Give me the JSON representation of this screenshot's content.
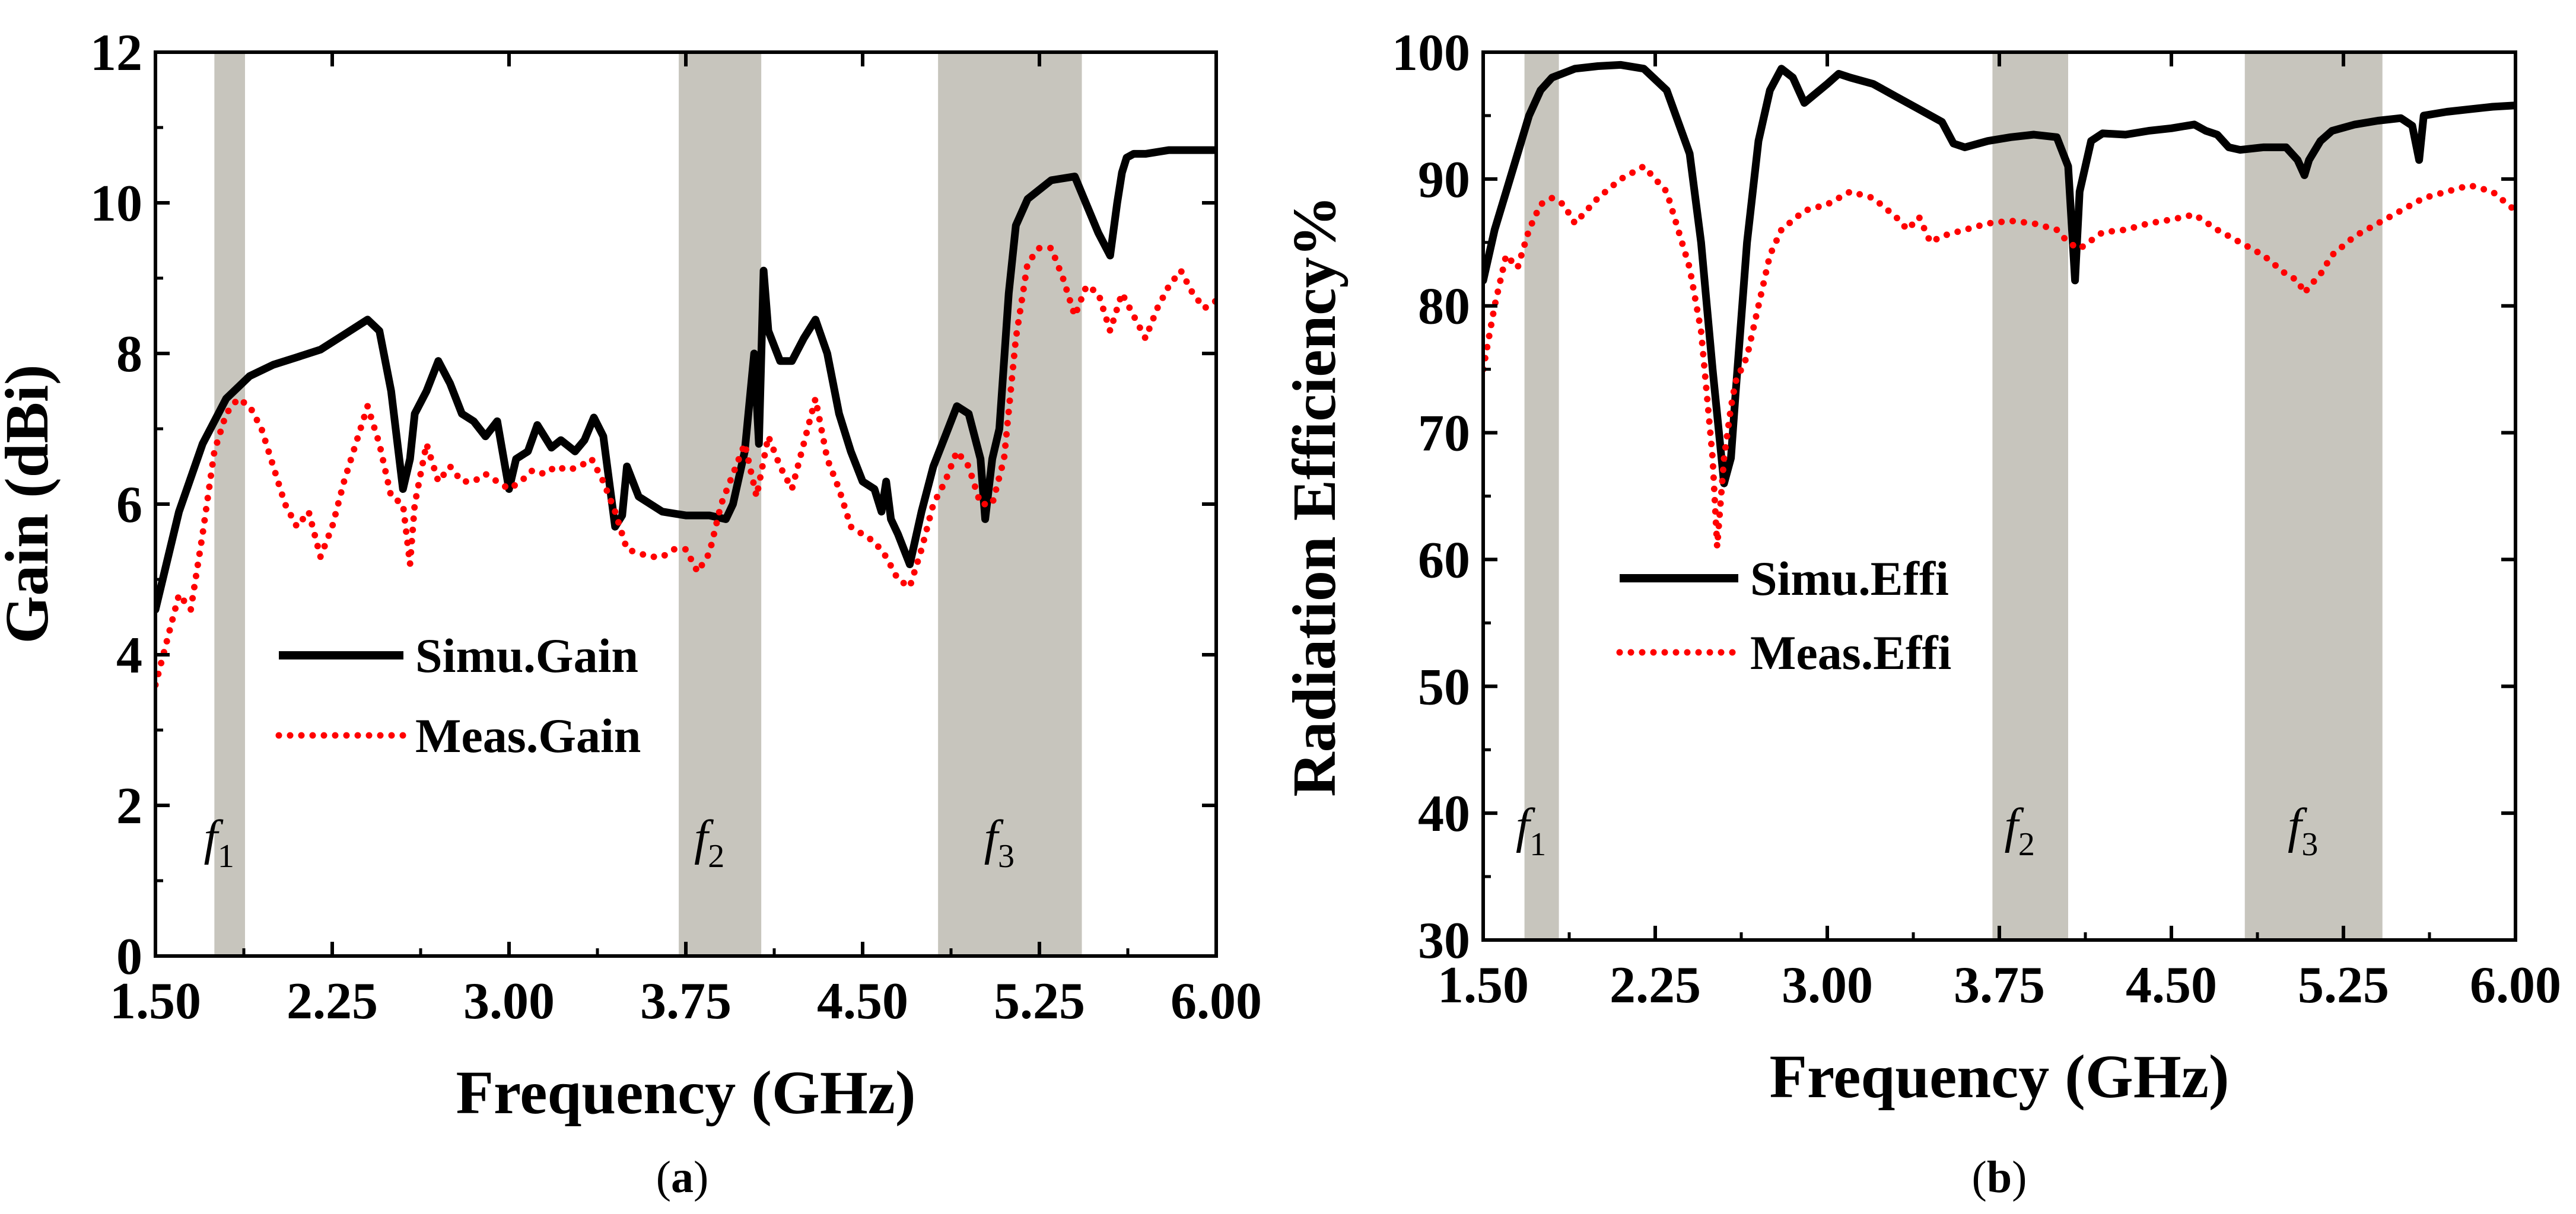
{
  "chart_data": [
    {
      "type": "line",
      "panel": "(a)",
      "caption_letter": "a",
      "xlabel": "Frequency (GHz)",
      "ylabel": "Gain (dBi)",
      "xlim": [
        1.5,
        6.0
      ],
      "ylim": [
        0,
        12
      ],
      "xticks": [
        "1.50",
        "2.25",
        "3.00",
        "3.75",
        "4.50",
        "5.25",
        "6.00"
      ],
      "yticks": [
        "0",
        "2",
        "4",
        "6",
        "8",
        "10",
        "12"
      ],
      "grid": false,
      "legend_position": "lower-left",
      "bands": [
        {
          "label": "f",
          "sub": "1",
          "range": [
            1.75,
            1.88
          ]
        },
        {
          "label": "f",
          "sub": "2",
          "range": [
            3.72,
            4.07
          ]
        },
        {
          "label": "f",
          "sub": "3",
          "range": [
            4.82,
            5.43
          ]
        }
      ],
      "series": [
        {
          "name": "Simu.Gain",
          "color": "#000000",
          "style": "solid",
          "x": [
            1.5,
            1.6,
            1.7,
            1.8,
            1.9,
            2.0,
            2.1,
            2.2,
            2.3,
            2.4,
            2.45,
            2.5,
            2.55,
            2.58,
            2.6,
            2.65,
            2.7,
            2.75,
            2.8,
            2.85,
            2.9,
            2.95,
            3.0,
            3.03,
            3.08,
            3.12,
            3.18,
            3.22,
            3.28,
            3.32,
            3.36,
            3.4,
            3.45,
            3.48,
            3.5,
            3.55,
            3.65,
            3.75,
            3.85,
            3.92,
            3.95,
            4.0,
            4.04,
            4.06,
            4.08,
            4.1,
            4.15,
            4.2,
            4.25,
            4.3,
            4.35,
            4.4,
            4.45,
            4.5,
            4.55,
            4.58,
            4.6,
            4.62,
            4.65,
            4.7,
            4.75,
            4.8,
            4.85,
            4.9,
            4.95,
            5.0,
            5.02,
            5.05,
            5.08,
            5.12,
            5.15,
            5.2,
            5.3,
            5.4,
            5.5,
            5.55,
            5.58,
            5.6,
            5.62,
            5.65,
            5.7,
            5.8,
            5.9,
            6.0
          ],
          "y": [
            4.6,
            5.9,
            6.8,
            7.4,
            7.7,
            7.85,
            7.95,
            8.05,
            8.25,
            8.45,
            8.3,
            7.5,
            6.2,
            6.6,
            7.2,
            7.5,
            7.9,
            7.6,
            7.2,
            7.1,
            6.9,
            7.1,
            6.2,
            6.6,
            6.7,
            7.05,
            6.75,
            6.85,
            6.7,
            6.85,
            7.15,
            6.9,
            5.7,
            5.85,
            6.5,
            6.1,
            5.9,
            5.85,
            5.85,
            5.8,
            6.0,
            6.7,
            8.0,
            6.8,
            9.1,
            8.3,
            7.9,
            7.9,
            8.2,
            8.45,
            8.0,
            7.2,
            6.7,
            6.3,
            6.2,
            5.9,
            6.3,
            5.8,
            5.6,
            5.2,
            5.9,
            6.5,
            6.9,
            7.3,
            7.2,
            6.6,
            5.8,
            6.6,
            7.0,
            8.8,
            9.7,
            10.05,
            10.3,
            10.35,
            9.6,
            9.3,
            10.0,
            10.4,
            10.6,
            10.65,
            10.65,
            10.7,
            10.7,
            10.7
          ]
        },
        {
          "name": "Meas.Gain",
          "color": "#ff0000",
          "style": "dotted",
          "x": [
            1.5,
            1.55,
            1.6,
            1.65,
            1.7,
            1.75,
            1.8,
            1.85,
            1.9,
            1.95,
            2.0,
            2.05,
            2.1,
            2.15,
            2.2,
            2.25,
            2.3,
            2.35,
            2.4,
            2.45,
            2.5,
            2.55,
            2.58,
            2.6,
            2.65,
            2.7,
            2.75,
            2.8,
            2.85,
            2.9,
            2.95,
            3.0,
            3.05,
            3.1,
            3.15,
            3.2,
            3.25,
            3.3,
            3.35,
            3.4,
            3.45,
            3.5,
            3.55,
            3.6,
            3.65,
            3.7,
            3.75,
            3.8,
            3.85,
            3.9,
            3.95,
            4.0,
            4.05,
            4.1,
            4.15,
            4.2,
            4.25,
            4.3,
            4.35,
            4.4,
            4.45,
            4.5,
            4.55,
            4.6,
            4.65,
            4.7,
            4.75,
            4.8,
            4.85,
            4.9,
            4.95,
            5.0,
            5.05,
            5.1,
            5.15,
            5.2,
            5.25,
            5.3,
            5.35,
            5.4,
            5.45,
            5.5,
            5.55,
            5.6,
            5.65,
            5.7,
            5.75,
            5.8,
            5.85,
            5.9,
            5.95,
            6.0
          ],
          "y": [
            3.6,
            4.2,
            4.8,
            4.6,
            5.6,
            6.7,
            7.2,
            7.4,
            7.3,
            7.0,
            6.5,
            6.0,
            5.7,
            5.9,
            5.3,
            5.7,
            6.3,
            6.8,
            7.3,
            6.8,
            6.1,
            6.0,
            5.2,
            6.0,
            6.8,
            6.3,
            6.5,
            6.3,
            6.3,
            6.4,
            6.3,
            6.2,
            6.3,
            6.45,
            6.4,
            6.5,
            6.45,
            6.5,
            6.6,
            6.3,
            5.9,
            5.4,
            5.35,
            5.3,
            5.3,
            5.4,
            5.4,
            5.1,
            5.35,
            6.0,
            6.4,
            6.8,
            6.1,
            6.9,
            6.5,
            6.2,
            6.8,
            7.4,
            6.6,
            6.2,
            5.7,
            5.6,
            5.5,
            5.3,
            5.0,
            4.9,
            5.4,
            6.0,
            6.3,
            6.7,
            6.5,
            6.0,
            6.0,
            6.6,
            8.2,
            9.2,
            9.4,
            9.4,
            9.0,
            8.5,
            8.9,
            8.8,
            8.3,
            8.8,
            8.5,
            8.2,
            8.6,
            8.9,
            9.1,
            8.8,
            8.6,
            8.7
          ]
        }
      ]
    },
    {
      "type": "line",
      "panel": "(b)",
      "caption_letter": "b",
      "xlabel": "Frequency (GHz)",
      "ylabel": "Radiation Efficiency%",
      "xlim": [
        1.5,
        6.0
      ],
      "ylim": [
        30,
        100
      ],
      "xticks": [
        "1.50",
        "2.25",
        "3.00",
        "3.75",
        "4.50",
        "5.25",
        "6.00"
      ],
      "yticks": [
        "30",
        "40",
        "50",
        "60",
        "70",
        "80",
        "90",
        "100"
      ],
      "grid": false,
      "legend_position": "center-left",
      "bands": [
        {
          "label": "f",
          "sub": "1",
          "range": [
            1.68,
            1.83
          ]
        },
        {
          "label": "f",
          "sub": "2",
          "range": [
            3.72,
            4.05
          ]
        },
        {
          "label": "f",
          "sub": "3",
          "range": [
            4.82,
            5.42
          ]
        }
      ],
      "series": [
        {
          "name": "Simu.Effi",
          "color": "#000000",
          "style": "solid",
          "x": [
            1.5,
            1.55,
            1.6,
            1.65,
            1.7,
            1.75,
            1.8,
            1.9,
            2.0,
            2.1,
            2.2,
            2.3,
            2.4,
            2.45,
            2.5,
            2.55,
            2.58,
            2.6,
            2.65,
            2.7,
            2.75,
            2.8,
            2.85,
            2.9,
            3.0,
            3.05,
            3.1,
            3.2,
            3.3,
            3.4,
            3.5,
            3.55,
            3.6,
            3.7,
            3.8,
            3.9,
            4.0,
            4.05,
            4.08,
            4.1,
            4.15,
            4.2,
            4.3,
            4.4,
            4.5,
            4.6,
            4.65,
            4.7,
            4.75,
            4.8,
            4.9,
            5.0,
            5.05,
            5.08,
            5.1,
            5.15,
            5.2,
            5.3,
            5.4,
            5.5,
            5.55,
            5.58,
            5.6,
            5.7,
            5.8,
            5.9,
            6.0
          ],
          "y": [
            82,
            86,
            89,
            92,
            95,
            97,
            98,
            98.7,
            98.9,
            99.0,
            98.7,
            97.0,
            92.0,
            85.0,
            75.0,
            66.0,
            68.0,
            73.0,
            85.0,
            93.0,
            97.0,
            98.7,
            98.0,
            96.0,
            97.5,
            98.3,
            98.0,
            97.5,
            96.5,
            95.5,
            94.5,
            92.8,
            92.5,
            93.0,
            93.3,
            93.5,
            93.3,
            91.0,
            82.0,
            89.0,
            93.0,
            93.6,
            93.5,
            93.8,
            94.0,
            94.3,
            93.8,
            93.5,
            92.5,
            92.3,
            92.5,
            92.5,
            91.5,
            90.3,
            91.5,
            93.0,
            93.8,
            94.3,
            94.6,
            94.8,
            94.2,
            91.5,
            95.0,
            95.3,
            95.5,
            95.7,
            95.8
          ]
        },
        {
          "name": "Meas.Effi",
          "color": "#ff0000",
          "style": "dotted",
          "x": [
            1.5,
            1.55,
            1.6,
            1.65,
            1.7,
            1.75,
            1.8,
            1.85,
            1.9,
            2.0,
            2.1,
            2.2,
            2.3,
            2.4,
            2.45,
            2.5,
            2.52,
            2.55,
            2.58,
            2.6,
            2.65,
            2.7,
            2.75,
            2.8,
            2.9,
            3.0,
            3.1,
            3.2,
            3.3,
            3.35,
            3.4,
            3.45,
            3.5,
            3.6,
            3.7,
            3.8,
            3.9,
            4.0,
            4.05,
            4.1,
            4.2,
            4.3,
            4.4,
            4.5,
            4.6,
            4.7,
            4.8,
            4.9,
            5.0,
            5.05,
            5.08,
            5.1,
            5.15,
            5.2,
            5.3,
            5.4,
            5.5,
            5.6,
            5.7,
            5.8,
            5.9,
            6.0
          ],
          "y": [
            75,
            80,
            84,
            83,
            86,
            88,
            88.5,
            88,
            86.5,
            88.5,
            90.0,
            91.0,
            89.0,
            83.0,
            78.0,
            68.0,
            61.0,
            68.0,
            72.0,
            74.0,
            76.0,
            80.0,
            84.0,
            86.0,
            87.5,
            88.0,
            89.0,
            88.5,
            87.0,
            86.0,
            87.0,
            85.0,
            85.5,
            86.0,
            86.5,
            86.7,
            86.5,
            86.0,
            85.0,
            84.5,
            85.8,
            86.0,
            86.5,
            86.8,
            87.2,
            86.0,
            85.0,
            84.0,
            82.5,
            82.0,
            81.0,
            81.5,
            82.5,
            84.0,
            85.5,
            86.5,
            87.5,
            88.5,
            89.0,
            89.5,
            89.0,
            87.5
          ]
        }
      ]
    }
  ]
}
